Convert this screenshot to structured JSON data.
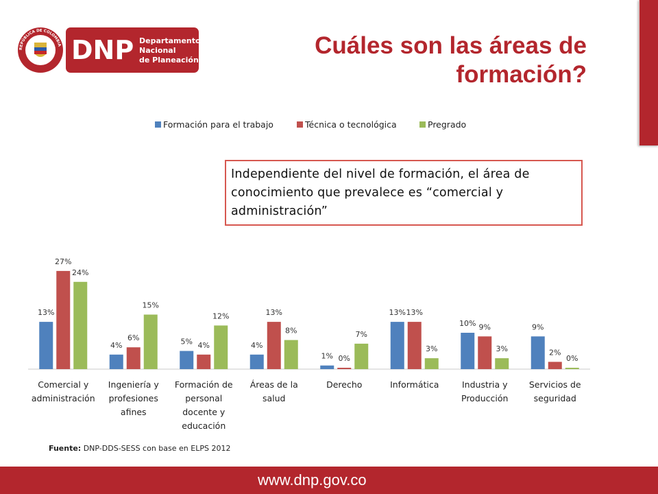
{
  "logo": {
    "seal_text": "REPÚBLICA DE COLOMBIA",
    "acronym": "DNP",
    "name_line1": "Departamento",
    "name_line2": "Nacional",
    "name_line3": "de Planeación"
  },
  "title": "Cuáles son las áreas de formación?",
  "callout": "Independiente del nivel de formación, el área de conocimiento que prevalece es “comercial y administración”",
  "source": {
    "label": "Fuente:",
    "text": " DNP-DDS-SESS con base en ELPS 2012"
  },
  "footer": {
    "url": "www.dnp.gov.co"
  },
  "colors": {
    "brand": "#b3262d",
    "series1": "#4f81bd",
    "series2": "#c0504d",
    "series3": "#9bbb59"
  },
  "chart_data": {
    "type": "bar",
    "title": "",
    "xlabel": "",
    "ylabel": "",
    "ylim": [
      0,
      30
    ],
    "grid": false,
    "legend": "top",
    "categories": [
      [
        "Comercial y",
        "administración"
      ],
      [
        "Ingeniería y",
        "profesiones",
        "afines"
      ],
      [
        "Formación de",
        "personal",
        "docente y",
        "educación"
      ],
      [
        "Áreas de la",
        "salud"
      ],
      [
        "Derecho"
      ],
      [
        "Informática"
      ],
      [
        "Industria y",
        "Producción"
      ],
      [
        "Servicios de",
        "seguridad"
      ]
    ],
    "series": [
      {
        "name": "Formación para el trabajo",
        "color": "#4f81bd",
        "values": [
          13,
          4,
          5,
          4,
          1,
          13,
          10,
          9
        ],
        "labels": [
          "13%",
          "4%",
          "5%",
          "4%",
          "1%",
          "13%",
          "10%",
          "9%"
        ]
      },
      {
        "name": "Técnica o tecnológica",
        "color": "#c0504d",
        "values": [
          27,
          6,
          4,
          13,
          0,
          13,
          9,
          2
        ],
        "labels": [
          "27%",
          "6%",
          "4%",
          "13%",
          "0%",
          "13%",
          "9%",
          "2%"
        ]
      },
      {
        "name": "Pregrado",
        "color": "#9bbb59",
        "values": [
          24,
          15,
          12,
          8,
          7,
          3,
          3,
          0
        ],
        "labels": [
          "24%",
          "15%",
          "12%",
          "8%",
          "7%",
          "3%",
          "3%",
          "0%"
        ]
      }
    ]
  }
}
